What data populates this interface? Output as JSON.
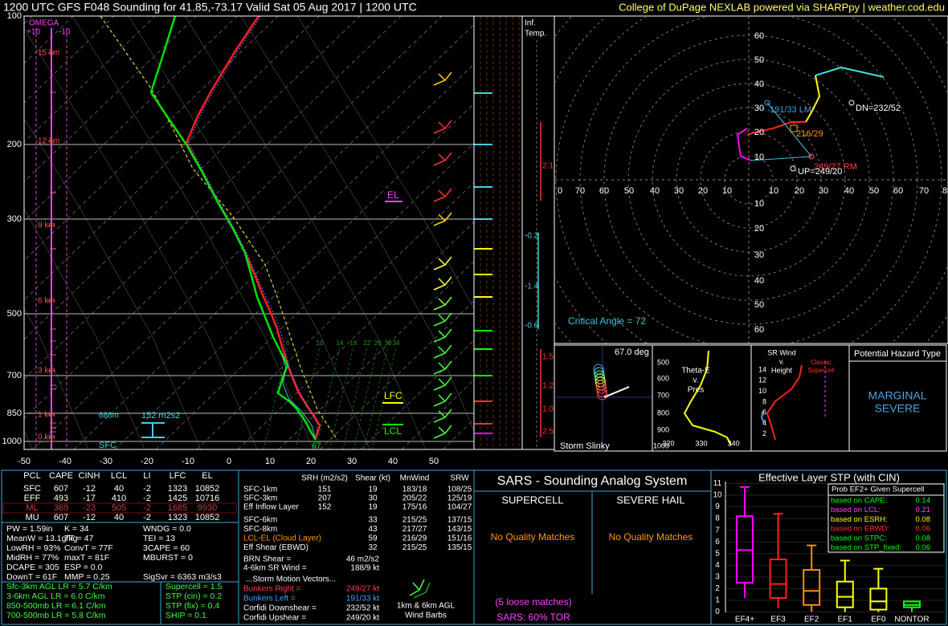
{
  "header": {
    "title": "1200 UTC GFS F048 Sounding for 41.85,-73.17 Valid  Sat 05 Aug 2017 | 1200 UTC",
    "credit": "College of DuPage NEXLAB powered via SHARPpy | weather.cod.edu"
  },
  "skewt": {
    "pressure_labels": [
      "100",
      "200",
      "300",
      "500",
      "700",
      "850",
      "1000"
    ],
    "temperature_labels": [
      "-50",
      "-40",
      "-30",
      "-20",
      "-10",
      "0",
      "10",
      "20",
      "30",
      "40",
      "50"
    ],
    "height_labels": [
      "15 km",
      "12 km",
      "9 km",
      "6 km",
      "3 km",
      "1 km",
      "0 km"
    ],
    "omega_title": "OMEGA",
    "omega_scale": [
      "+10",
      "-10"
    ],
    "mixing_ratio_labels": [
      "6",
      "10",
      "14",
      "18",
      "22",
      "26",
      "30",
      "34"
    ],
    "el": "EL",
    "lfc": "LFC",
    "lcl": "LCL",
    "sfc": "SFC",
    "eff_base": "686m",
    "esrh": "152 m2s2",
    "sfc_dewpoint": "67"
  },
  "inferred_temp": {
    "title": [
      "Inf.",
      "Temp."
    ],
    "values": [
      "2.1",
      "-0.2",
      "-1.4",
      "-0.6",
      "1.5",
      "1.2",
      "1.0",
      "2.5"
    ]
  },
  "hodograph": {
    "y_labels_up": [
      "60",
      "50",
      "40",
      "30",
      "20",
      "10"
    ],
    "y_labels_down": [
      "10",
      "20",
      "30",
      "40",
      "50",
      "60"
    ],
    "x_labels_left": [
      "0",
      "70",
      "60",
      "50",
      "40",
      "30",
      "20",
      "10"
    ],
    "x_labels_right": [
      "10",
      "20",
      "30",
      "40",
      "50",
      "60",
      "70",
      "8"
    ],
    "left_mover": "191/33 LM",
    "downshear": "DN=232/52",
    "mean_wind": "216/29",
    "right_mover": "249/27 RM",
    "upshear": "UP=249/20",
    "critical_angle": "Critical Angle = 72"
  },
  "storm_slinky": {
    "angle": "67.0 deg",
    "title": "Storm Slinky"
  },
  "theta_e": {
    "title": [
      "Theta-E",
      "v.",
      "Pres"
    ],
    "pressure_labels": [
      "500",
      "600",
      "700",
      "800",
      "900",
      "1000"
    ],
    "theta_labels": [
      "320",
      "330",
      "340"
    ]
  },
  "sr_wind": {
    "title": [
      "SR Wind",
      "v.",
      "Height"
    ],
    "note": [
      "Classic",
      "Supercell"
    ],
    "height_labels": [
      "14",
      "12",
      "10",
      "8",
      "6",
      "4",
      "2"
    ]
  },
  "hazard": {
    "title": "Potential Hazard Type",
    "type": [
      "MARGINAL",
      "SEVERE"
    ]
  },
  "thermo": {
    "header": [
      "PCL",
      "CAPE",
      "CINH",
      "LCL",
      "LI",
      "LFC",
      "EL"
    ],
    "rows": [
      [
        "SFC",
        "607",
        "-12",
        "40",
        "-2",
        "1323",
        "10852"
      ],
      [
        "EFF",
        "493",
        "-17",
        "410",
        "-2",
        "1425",
        "10716"
      ],
      [
        "ML",
        "369",
        "-23",
        "505",
        "-2",
        "1685",
        "9930"
      ],
      [
        "MU",
        "607",
        "-12",
        "40",
        "-2",
        "1323",
        "10852"
      ]
    ],
    "indices": [
      [
        "PW = 1.59in",
        "K = 34",
        "WNDG = 0.0"
      ],
      [
        "MeanW = 13.1g/kg",
        "TT = 47",
        "TEI = 13"
      ],
      [
        "LowRH = 93%",
        "ConvT = 77F",
        "3CAPE = 60"
      ],
      [
        "MidRH = 77%",
        "maxT = 81F",
        "MBURST = 0"
      ],
      [
        "DCAPE = 305",
        "ESP = 0.0"
      ],
      [
        "DownT = 61F",
        "MMP = 0.25",
        "SigSvr = 6363 m3/s3"
      ]
    ],
    "lapse_rates": [
      "Sfc-3km AGL LR = 5.7 C/km",
      "3-6km AGL LR = 6.0 C/km",
      "850-500mb LR = 6.1 C/km",
      "700-500mb LR = 5.8 C/km"
    ],
    "composites": [
      "Supercell = 1.5",
      "STP (cin) = 0.2",
      "STP (fix) = 0.4",
      "SHIP = 0.1"
    ]
  },
  "kinematics": {
    "header": [
      "SRH (m2/s2)",
      "Shear (kt)",
      "MnWind",
      "SRW"
    ],
    "rows": [
      [
        "SFC-1km",
        "151",
        "19",
        "183/18",
        "108/25"
      ],
      [
        "SFC-3km",
        "207",
        "30",
        "205/22",
        "125/19"
      ],
      [
        "Eff Inflow Layer",
        "152",
        "19",
        "175/16",
        "104/27"
      ]
    ],
    "deep_rows": [
      [
        "SFC-6km",
        "33",
        "215/25",
        "137/15"
      ],
      [
        "SFC-8km",
        "43",
        "217/27",
        "143/15"
      ],
      [
        "LCL-EL (Cloud Layer)",
        "59",
        "216/29",
        "151/16"
      ],
      [
        "Eff Shear (EBWD)",
        "32",
        "215/25",
        "135/15"
      ]
    ],
    "params": [
      [
        "BRN Shear =",
        "46 m2/s2"
      ],
      [
        "4-6km SR Wind =",
        "188/9 kt"
      ]
    ],
    "storm_motion_title": "...Storm Motion Vectors...",
    "storm_motion": [
      [
        "Bunkers Right =",
        "249/27 kt"
      ],
      [
        "Bunkers Left =",
        "191/33 kt"
      ],
      [
        "Corfidi Downshear =",
        "232/52 kt"
      ],
      [
        "Corfidi Upshear =",
        "249/20 kt"
      ]
    ],
    "barb_caption": [
      "1km & 6km AGL",
      "Wind Barbs"
    ]
  },
  "sars": {
    "title": "SARS - Sounding Analog System",
    "supercell": "SUPERCELL",
    "hail": "SEVERE HAIL",
    "supercell_result": "No Quality Matches",
    "hail_result": "No Quality Matches",
    "loose": "(5 loose matches)",
    "tor": "SARS: 60% TOR"
  },
  "stp": {
    "title": "Effective Layer STP (with CIN)",
    "y_labels": [
      "11",
      "10",
      "9",
      "8",
      "7",
      "6",
      "5",
      "4",
      "3",
      "2",
      "1",
      "0"
    ],
    "categories": [
      "EF4+",
      "EF3",
      "EF2",
      "EF1",
      "EF0",
      "NONTOR"
    ],
    "colors": [
      "#ff00ff",
      "#ff2020",
      "#ff8c00",
      "#ffff00",
      "#ffff00",
      "#00ff00"
    ],
    "boxes": [
      [
        1.2,
        2.5,
        5.3,
        8.2,
        10.7
      ],
      [
        0.3,
        1.2,
        2.4,
        4.5,
        8.4
      ],
      [
        0,
        0.6,
        1.8,
        3.6,
        5.7
      ],
      [
        0,
        0.4,
        1.3,
        2.6,
        4.4
      ],
      [
        0,
        0.2,
        0.9,
        2.0,
        3.7
      ],
      [
        0,
        0.4,
        0.6,
        0.9,
        0.9
      ]
    ],
    "prob_title": "Prob EF2+ Given Supercell",
    "prob": [
      [
        "based on CAPE:",
        "0.14"
      ],
      [
        "based on LCL:",
        "0.21"
      ],
      [
        "based on ESRH:",
        "0.08"
      ],
      [
        "based on EBWD:",
        "0.06"
      ],
      [
        "based on STPC:",
        "0.08"
      ],
      [
        "based on STP_fixed:",
        "0.06"
      ]
    ]
  }
}
